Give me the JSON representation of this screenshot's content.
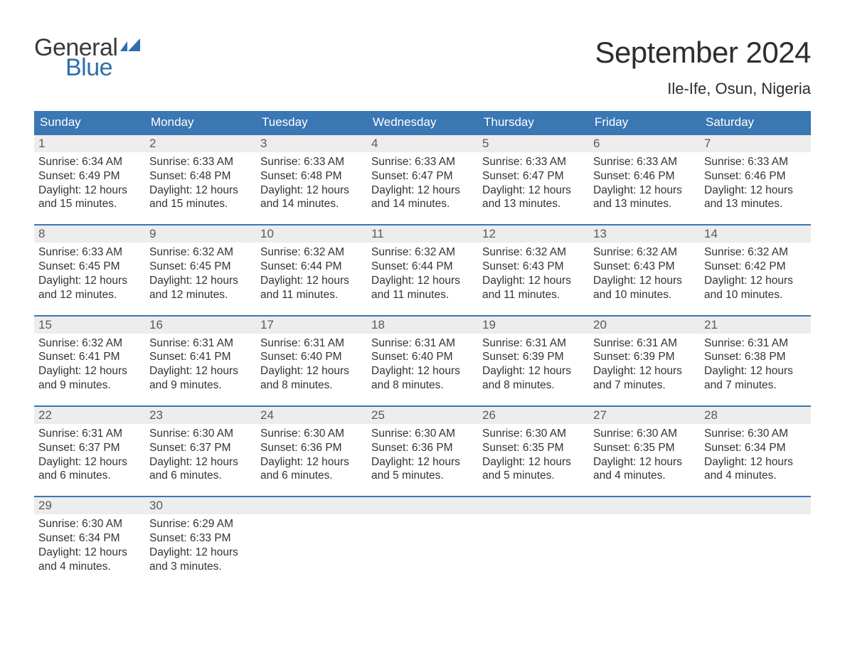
{
  "logo": {
    "general": "General",
    "blue": "Blue",
    "flag_color": "#2f6fab"
  },
  "title": "September 2024",
  "location": "Ile-Ife, Osun, Nigeria",
  "colors": {
    "header_bg": "#3a77b3",
    "header_text": "#ffffff",
    "daynum_bg": "#ededed",
    "daynum_border": "#3a77b3",
    "body_text": "#333333",
    "background": "#ffffff"
  },
  "typography": {
    "title_fontsize": 42,
    "location_fontsize": 22,
    "dow_fontsize": 17,
    "daynum_fontsize": 17,
    "cell_fontsize": 15.5
  },
  "days_of_week": [
    "Sunday",
    "Monday",
    "Tuesday",
    "Wednesday",
    "Thursday",
    "Friday",
    "Saturday"
  ],
  "weeks": [
    [
      {
        "n": "1",
        "sunrise": "Sunrise: 6:34 AM",
        "sunset": "Sunset: 6:49 PM",
        "day1": "Daylight: 12 hours",
        "day2": "and 15 minutes."
      },
      {
        "n": "2",
        "sunrise": "Sunrise: 6:33 AM",
        "sunset": "Sunset: 6:48 PM",
        "day1": "Daylight: 12 hours",
        "day2": "and 15 minutes."
      },
      {
        "n": "3",
        "sunrise": "Sunrise: 6:33 AM",
        "sunset": "Sunset: 6:48 PM",
        "day1": "Daylight: 12 hours",
        "day2": "and 14 minutes."
      },
      {
        "n": "4",
        "sunrise": "Sunrise: 6:33 AM",
        "sunset": "Sunset: 6:47 PM",
        "day1": "Daylight: 12 hours",
        "day2": "and 14 minutes."
      },
      {
        "n": "5",
        "sunrise": "Sunrise: 6:33 AM",
        "sunset": "Sunset: 6:47 PM",
        "day1": "Daylight: 12 hours",
        "day2": "and 13 minutes."
      },
      {
        "n": "6",
        "sunrise": "Sunrise: 6:33 AM",
        "sunset": "Sunset: 6:46 PM",
        "day1": "Daylight: 12 hours",
        "day2": "and 13 minutes."
      },
      {
        "n": "7",
        "sunrise": "Sunrise: 6:33 AM",
        "sunset": "Sunset: 6:46 PM",
        "day1": "Daylight: 12 hours",
        "day2": "and 13 minutes."
      }
    ],
    [
      {
        "n": "8",
        "sunrise": "Sunrise: 6:33 AM",
        "sunset": "Sunset: 6:45 PM",
        "day1": "Daylight: 12 hours",
        "day2": "and 12 minutes."
      },
      {
        "n": "9",
        "sunrise": "Sunrise: 6:32 AM",
        "sunset": "Sunset: 6:45 PM",
        "day1": "Daylight: 12 hours",
        "day2": "and 12 minutes."
      },
      {
        "n": "10",
        "sunrise": "Sunrise: 6:32 AM",
        "sunset": "Sunset: 6:44 PM",
        "day1": "Daylight: 12 hours",
        "day2": "and 11 minutes."
      },
      {
        "n": "11",
        "sunrise": "Sunrise: 6:32 AM",
        "sunset": "Sunset: 6:44 PM",
        "day1": "Daylight: 12 hours",
        "day2": "and 11 minutes."
      },
      {
        "n": "12",
        "sunrise": "Sunrise: 6:32 AM",
        "sunset": "Sunset: 6:43 PM",
        "day1": "Daylight: 12 hours",
        "day2": "and 11 minutes."
      },
      {
        "n": "13",
        "sunrise": "Sunrise: 6:32 AM",
        "sunset": "Sunset: 6:43 PM",
        "day1": "Daylight: 12 hours",
        "day2": "and 10 minutes."
      },
      {
        "n": "14",
        "sunrise": "Sunrise: 6:32 AM",
        "sunset": "Sunset: 6:42 PM",
        "day1": "Daylight: 12 hours",
        "day2": "and 10 minutes."
      }
    ],
    [
      {
        "n": "15",
        "sunrise": "Sunrise: 6:32 AM",
        "sunset": "Sunset: 6:41 PM",
        "day1": "Daylight: 12 hours",
        "day2": "and 9 minutes."
      },
      {
        "n": "16",
        "sunrise": "Sunrise: 6:31 AM",
        "sunset": "Sunset: 6:41 PM",
        "day1": "Daylight: 12 hours",
        "day2": "and 9 minutes."
      },
      {
        "n": "17",
        "sunrise": "Sunrise: 6:31 AM",
        "sunset": "Sunset: 6:40 PM",
        "day1": "Daylight: 12 hours",
        "day2": "and 8 minutes."
      },
      {
        "n": "18",
        "sunrise": "Sunrise: 6:31 AM",
        "sunset": "Sunset: 6:40 PM",
        "day1": "Daylight: 12 hours",
        "day2": "and 8 minutes."
      },
      {
        "n": "19",
        "sunrise": "Sunrise: 6:31 AM",
        "sunset": "Sunset: 6:39 PM",
        "day1": "Daylight: 12 hours",
        "day2": "and 8 minutes."
      },
      {
        "n": "20",
        "sunrise": "Sunrise: 6:31 AM",
        "sunset": "Sunset: 6:39 PM",
        "day1": "Daylight: 12 hours",
        "day2": "and 7 minutes."
      },
      {
        "n": "21",
        "sunrise": "Sunrise: 6:31 AM",
        "sunset": "Sunset: 6:38 PM",
        "day1": "Daylight: 12 hours",
        "day2": "and 7 minutes."
      }
    ],
    [
      {
        "n": "22",
        "sunrise": "Sunrise: 6:31 AM",
        "sunset": "Sunset: 6:37 PM",
        "day1": "Daylight: 12 hours",
        "day2": "and 6 minutes."
      },
      {
        "n": "23",
        "sunrise": "Sunrise: 6:30 AM",
        "sunset": "Sunset: 6:37 PM",
        "day1": "Daylight: 12 hours",
        "day2": "and 6 minutes."
      },
      {
        "n": "24",
        "sunrise": "Sunrise: 6:30 AM",
        "sunset": "Sunset: 6:36 PM",
        "day1": "Daylight: 12 hours",
        "day2": "and 6 minutes."
      },
      {
        "n": "25",
        "sunrise": "Sunrise: 6:30 AM",
        "sunset": "Sunset: 6:36 PM",
        "day1": "Daylight: 12 hours",
        "day2": "and 5 minutes."
      },
      {
        "n": "26",
        "sunrise": "Sunrise: 6:30 AM",
        "sunset": "Sunset: 6:35 PM",
        "day1": "Daylight: 12 hours",
        "day2": "and 5 minutes."
      },
      {
        "n": "27",
        "sunrise": "Sunrise: 6:30 AM",
        "sunset": "Sunset: 6:35 PM",
        "day1": "Daylight: 12 hours",
        "day2": "and 4 minutes."
      },
      {
        "n": "28",
        "sunrise": "Sunrise: 6:30 AM",
        "sunset": "Sunset: 6:34 PM",
        "day1": "Daylight: 12 hours",
        "day2": "and 4 minutes."
      }
    ],
    [
      {
        "n": "29",
        "sunrise": "Sunrise: 6:30 AM",
        "sunset": "Sunset: 6:34 PM",
        "day1": "Daylight: 12 hours",
        "day2": "and 4 minutes."
      },
      {
        "n": "30",
        "sunrise": "Sunrise: 6:29 AM",
        "sunset": "Sunset: 6:33 PM",
        "day1": "Daylight: 12 hours",
        "day2": "and 3 minutes."
      },
      null,
      null,
      null,
      null,
      null
    ]
  ]
}
